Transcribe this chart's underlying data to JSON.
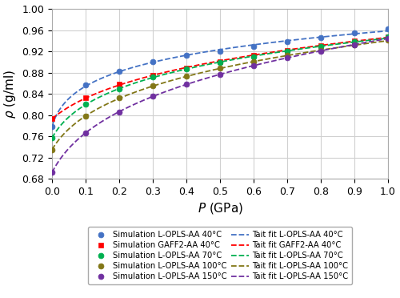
{
  "title": "",
  "xlabel": "P (GPa)",
  "ylabel": "ρ (g/ml)",
  "xlim": [
    0,
    1.0
  ],
  "ylim": [
    0.68,
    1.0
  ],
  "xticks": [
    0,
    0.1,
    0.2,
    0.3,
    0.4,
    0.5,
    0.6,
    0.7,
    0.8,
    0.9,
    1.0
  ],
  "yticks": [
    0.68,
    0.72,
    0.76,
    0.8,
    0.84,
    0.88,
    0.92,
    0.96,
    1.0
  ],
  "series": [
    {
      "label": "Simulation L-OPLS-AA 40°C",
      "color": "#4472C4",
      "marker": "o",
      "marker_size": 5,
      "pressure": [
        0.0001,
        0.1,
        0.2,
        0.3,
        0.4,
        0.5,
        0.6,
        0.7,
        0.8,
        0.9,
        1.0
      ],
      "density": [
        0.779,
        0.857,
        0.882,
        0.9,
        0.912,
        0.921,
        0.93,
        0.938,
        0.946,
        0.955,
        0.963
      ]
    },
    {
      "label": "Simulation GAFF2-AA 40°C",
      "color": "#FF0000",
      "marker": "s",
      "marker_size": 5,
      "pressure": [
        0.0001,
        0.1,
        0.2,
        0.3,
        0.4,
        0.5,
        0.6,
        0.7,
        0.8,
        0.9,
        1.0
      ],
      "density": [
        0.793,
        0.833,
        0.858,
        0.875,
        0.889,
        0.901,
        0.912,
        0.922,
        0.931,
        0.94,
        0.948
      ]
    },
    {
      "label": "Simulation L-OPLS-AA 70°C",
      "color": "#00B050",
      "marker": "o",
      "marker_size": 5,
      "pressure": [
        0.0001,
        0.1,
        0.2,
        0.3,
        0.4,
        0.5,
        0.6,
        0.7,
        0.8,
        0.9,
        1.0
      ],
      "density": [
        0.757,
        0.82,
        0.85,
        0.872,
        0.887,
        0.899,
        0.91,
        0.92,
        0.929,
        0.938,
        0.947
      ]
    },
    {
      "label": "Simulation L-OPLS-AA 100°C",
      "color": "#827717",
      "marker": "o",
      "marker_size": 5,
      "pressure": [
        0.0001,
        0.1,
        0.2,
        0.3,
        0.4,
        0.5,
        0.6,
        0.7,
        0.8,
        0.9,
        1.0
      ],
      "density": [
        0.735,
        0.798,
        0.832,
        0.855,
        0.873,
        0.888,
        0.9,
        0.912,
        0.922,
        0.932,
        0.941
      ]
    },
    {
      "label": "Simulation L-OPLS-AA 150°C",
      "color": "#7030A0",
      "marker": "o",
      "marker_size": 5,
      "pressure": [
        0.0001,
        0.1,
        0.2,
        0.3,
        0.4,
        0.5,
        0.6,
        0.7,
        0.8,
        0.9,
        1.0
      ],
      "density": [
        0.692,
        0.766,
        0.806,
        0.836,
        0.858,
        0.877,
        0.893,
        0.908,
        0.921,
        0.933,
        0.944
      ]
    }
  ],
  "tait_fits": [
    {
      "label": "Tait fit L-OPLS-AA 40°C",
      "color": "#4472C4",
      "rho0": 0.779,
      "C": 0.0894,
      "B": 0.1003,
      "P0": 0.0001
    },
    {
      "label": "Tait fit GAFF2-AA 40°C",
      "color": "#FF0000",
      "rho0": 0.793,
      "C": 0.0894,
      "B": 0.143,
      "P0": 0.0001
    },
    {
      "label": "Tait fit L-OPLS-AA 70°C",
      "color": "#00B050",
      "rho0": 0.757,
      "C": 0.0894,
      "B": 0.088,
      "P0": 0.0001
    },
    {
      "label": "Tait fit L-OPLS-AA 100°C",
      "color": "#827717",
      "rho0": 0.735,
      "C": 0.0894,
      "B": 0.077,
      "P0": 0.0001
    },
    {
      "label": "Tait fit L-OPLS-AA 150°C",
      "color": "#7030A0",
      "rho0": 0.692,
      "C": 0.0894,
      "B": 0.057,
      "P0": 0.0001
    }
  ],
  "background_color": "#FFFFFF",
  "grid_color": "#D0D0D0",
  "legend_fontsize": 7.2,
  "axis_label_fontsize": 11,
  "tick_fontsize": 9
}
